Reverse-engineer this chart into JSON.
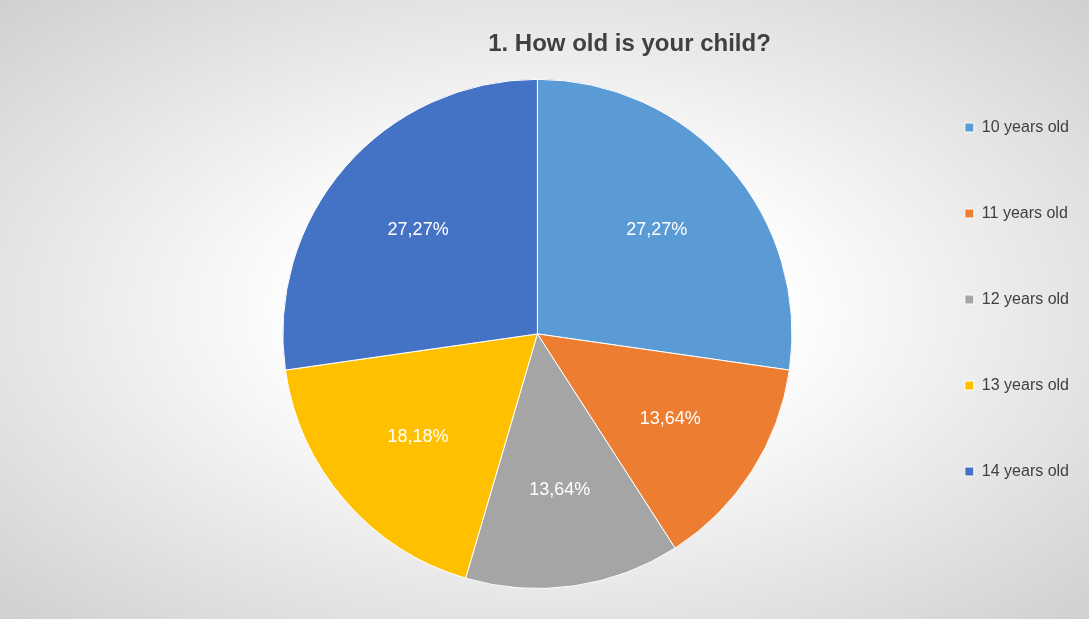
{
  "chart_data": {
    "type": "pie",
    "title": "1. How old is your child?",
    "categories": [
      "10 years old",
      "11 years old",
      "12 years old",
      "13 years old",
      "14 years old"
    ],
    "values": [
      27.27,
      13.64,
      13.64,
      18.18,
      27.27
    ],
    "colors": [
      "#5b9bd5",
      "#ed7d31",
      "#a5a5a5",
      "#ffc000",
      "#4472c4"
    ],
    "value_labels": [
      "27,27%",
      "13,64%",
      "13,64%",
      "18,18%",
      "27,27%"
    ],
    "legend": "right"
  }
}
